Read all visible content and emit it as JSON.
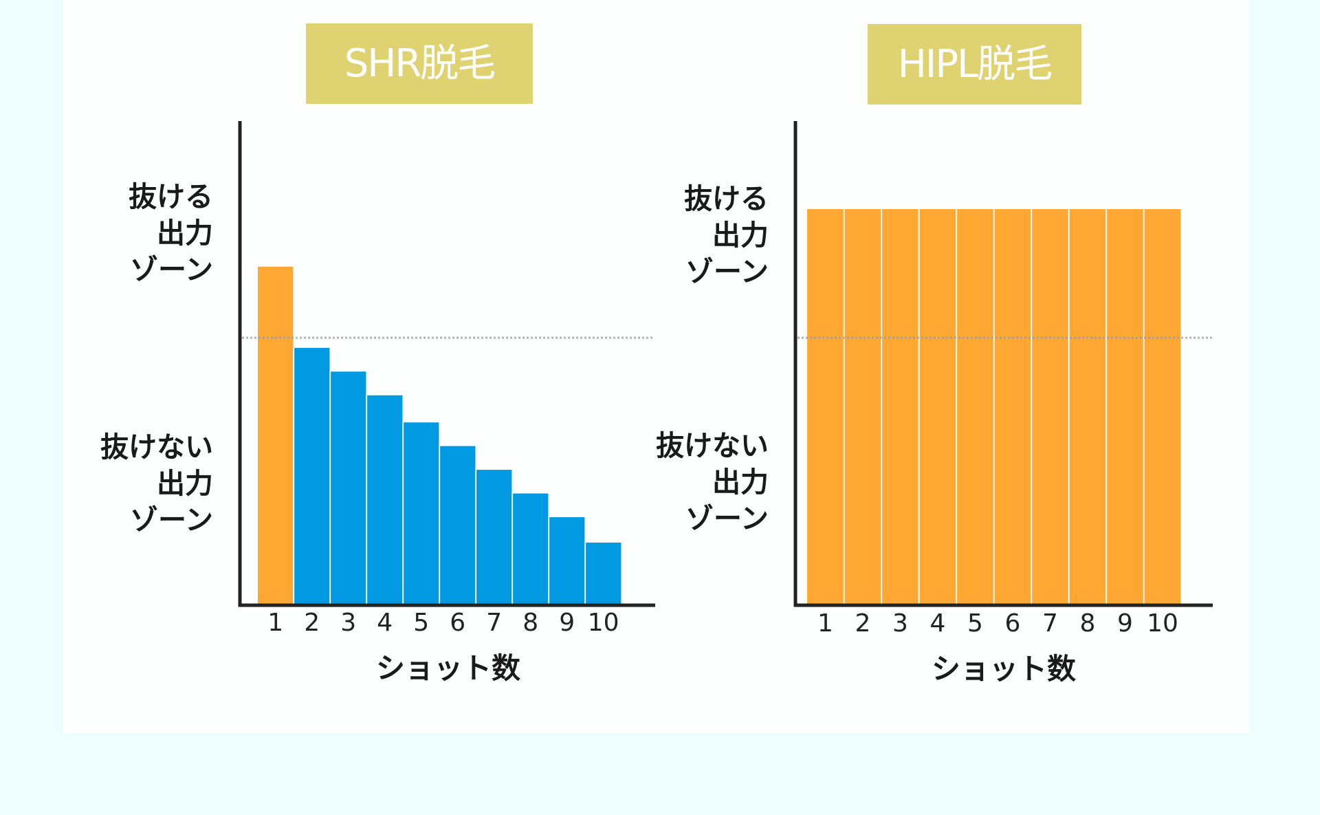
{
  "colors": {
    "page_background": "#eefdfd",
    "card_background": "#fdffff",
    "title_background": "#dfd271",
    "title_text": "#ffffff",
    "bar_above_threshold": "#ffa733",
    "bar_below_threshold": "#0299e3",
    "axis": "#222222",
    "threshold_line": "#9a9a9a"
  },
  "chart_data": [
    {
      "type": "bar",
      "title": "SHR脱毛",
      "xlabel": "ショット数",
      "ylabel_zones": {
        "upper": [
          "抜ける",
          "出力",
          "ゾーン"
        ],
        "lower": [
          "抜けない",
          "出力",
          "ゾーン"
        ]
      },
      "categories": [
        "1",
        "2",
        "3",
        "4",
        "5",
        "6",
        "7",
        "8",
        "9",
        "10"
      ],
      "values": [
        100,
        76,
        69,
        62,
        54,
        47,
        40,
        33,
        26,
        18.5
      ],
      "bar_colors": [
        "#ffa733",
        "#0299e3",
        "#0299e3",
        "#0299e3",
        "#0299e3",
        "#0299e3",
        "#0299e3",
        "#0299e3",
        "#0299e3",
        "#0299e3"
      ],
      "threshold": 79,
      "ylim": [
        0,
        143
      ],
      "grid": false,
      "legend": "none"
    },
    {
      "type": "bar",
      "title": "HIPL脱毛",
      "xlabel": "ショット数",
      "ylabel_zones": {
        "upper": [
          "抜ける",
          "出力",
          "ゾーン"
        ],
        "lower": [
          "抜けない",
          "出力",
          "ゾーン"
        ]
      },
      "categories": [
        "1",
        "2",
        "3",
        "4",
        "5",
        "6",
        "7",
        "8",
        "9",
        "10"
      ],
      "values": [
        117,
        117,
        117,
        117,
        117,
        117,
        117,
        117,
        117,
        117
      ],
      "bar_colors": [
        "#ffa733",
        "#ffa733",
        "#ffa733",
        "#ffa733",
        "#ffa733",
        "#ffa733",
        "#ffa733",
        "#ffa733",
        "#ffa733",
        "#ffa733"
      ],
      "threshold": 79,
      "ylim": [
        0,
        143
      ],
      "grid": false,
      "legend": "none"
    }
  ]
}
